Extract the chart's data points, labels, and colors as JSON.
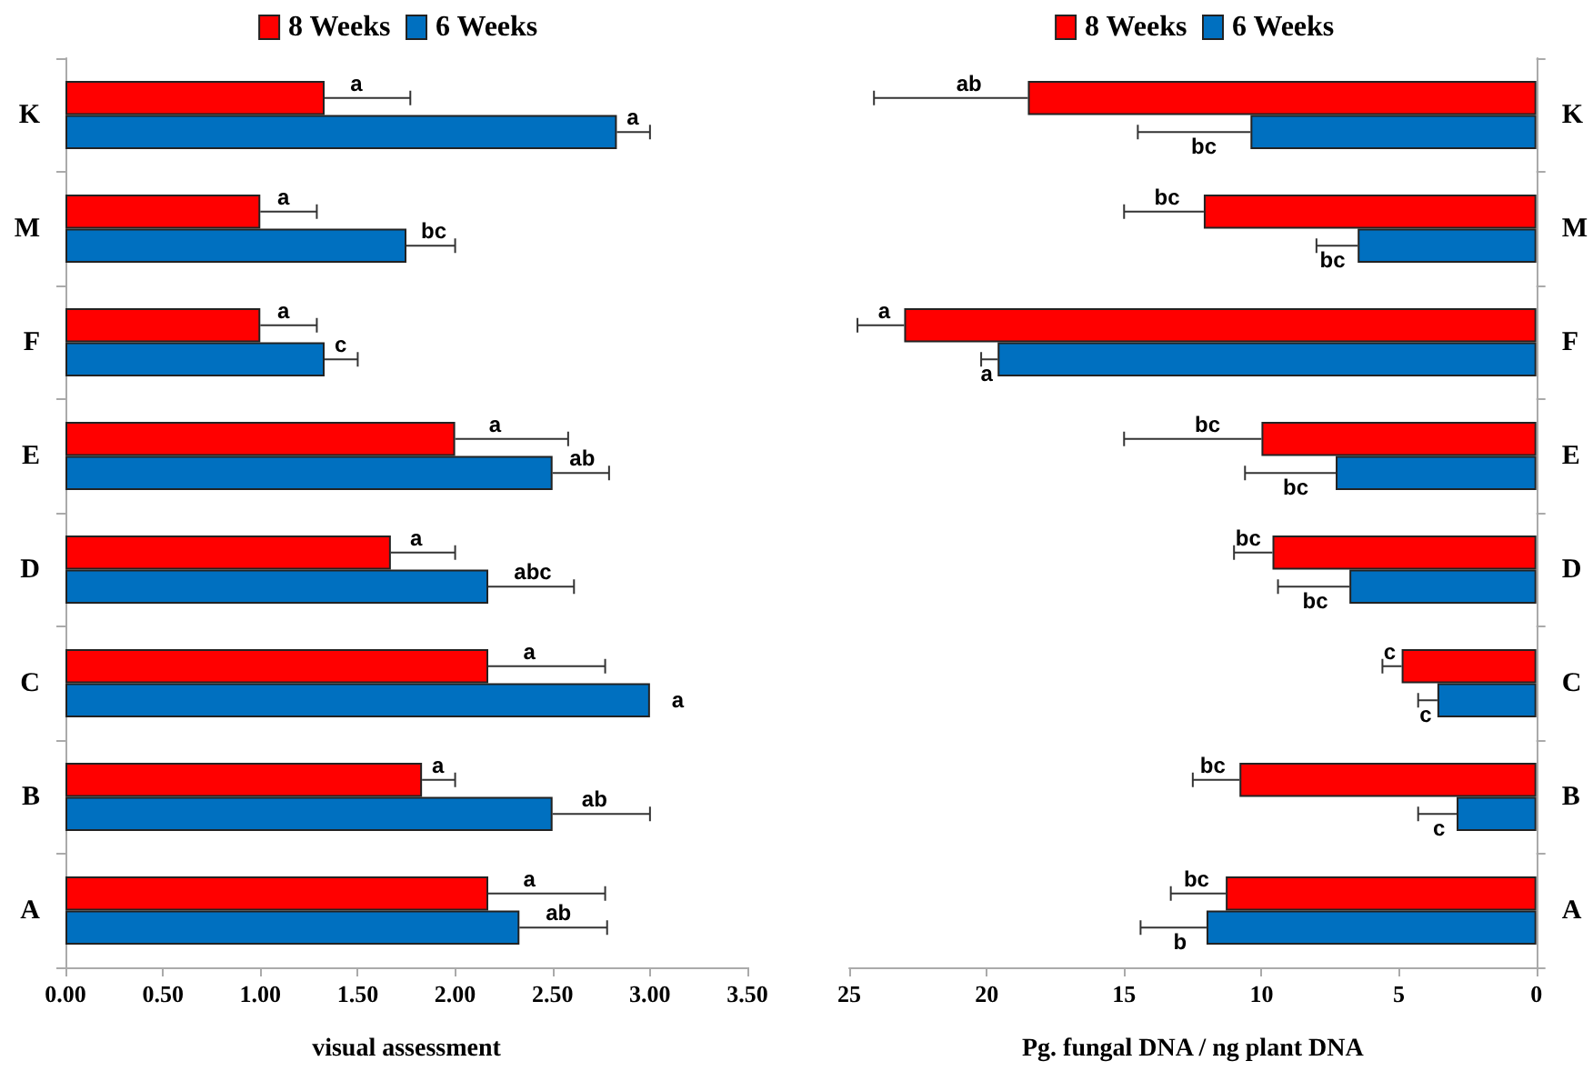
{
  "chart_data": [
    {
      "type": "bar",
      "orientation": "horizontal",
      "categories": [
        "K",
        "M",
        "F",
        "E",
        "D",
        "C",
        "B",
        "A"
      ],
      "series": [
        {
          "name": "8 Weeks",
          "color": "#ff0000",
          "values": [
            1.33,
            1.0,
            1.0,
            2.0,
            1.67,
            2.17,
            1.83,
            2.17
          ],
          "errors": [
            0.44,
            0.29,
            0.29,
            0.58,
            0.33,
            0.6,
            0.17,
            0.6
          ],
          "value_labels": [
            "a",
            "a",
            "a",
            "a",
            "a",
            "a",
            "a",
            "a"
          ]
        },
        {
          "name": "6 Weeks",
          "color": "#0070c0",
          "values": [
            2.83,
            1.75,
            1.33,
            2.5,
            2.17,
            3.0,
            2.5,
            2.33
          ],
          "errors": [
            0.17,
            0.25,
            0.17,
            0.29,
            0.44,
            0,
            0.5,
            0.45
          ],
          "value_labels": [
            "a",
            "bc",
            "c",
            "ab",
            "abc",
            "a",
            "ab",
            "ab"
          ]
        }
      ],
      "xlim": [
        0,
        3.5
      ],
      "xticks": [
        {
          "value": 0,
          "label": "0.00"
        },
        {
          "value": 0.5,
          "label": "0.50"
        },
        {
          "value": 1,
          "label": "1.00"
        },
        {
          "value": 1.5,
          "label": "1.50"
        },
        {
          "value": 2,
          "label": "2.00"
        },
        {
          "value": 2.5,
          "label": "2.50"
        },
        {
          "value": 3,
          "label": "3.00"
        },
        {
          "value": 3.5,
          "label": "3.50"
        }
      ],
      "xlabel": "visual assessment",
      "legend": "top",
      "grid": false
    },
    {
      "type": "bar",
      "orientation": "horizontal",
      "categories": [
        "K",
        "M",
        "F",
        "E",
        "D",
        "C",
        "B",
        "A"
      ],
      "series": [
        {
          "name": "8 Weeks",
          "color": "#ff0000",
          "values": [
            18.5,
            12.1,
            23.0,
            10.0,
            9.6,
            4.9,
            10.8,
            11.3
          ],
          "errors": [
            5.6,
            2.9,
            1.7,
            5.0,
            1.4,
            0.7,
            1.7,
            2.0
          ],
          "value_labels": [
            "ab",
            "bc",
            "a",
            "bc",
            "bc",
            "c",
            "bc",
            "bc"
          ]
        },
        {
          "name": "6 Weeks",
          "color": "#0070c0",
          "values": [
            10.4,
            6.5,
            19.6,
            7.3,
            6.8,
            3.6,
            2.9,
            12.0
          ],
          "errors": [
            4.1,
            1.5,
            0.6,
            3.3,
            2.6,
            0.7,
            1.4,
            2.4
          ],
          "value_labels": [
            "bc",
            "bc",
            "a",
            "bc",
            "bc",
            "c",
            "c",
            "b"
          ]
        }
      ],
      "xlim": [
        25,
        0
      ],
      "xticks": [
        25,
        20,
        15,
        10,
        5,
        0
      ],
      "xlabel": "Pg. fungal DNA / ng plant DNA",
      "legend": "top",
      "grid": false
    }
  ]
}
